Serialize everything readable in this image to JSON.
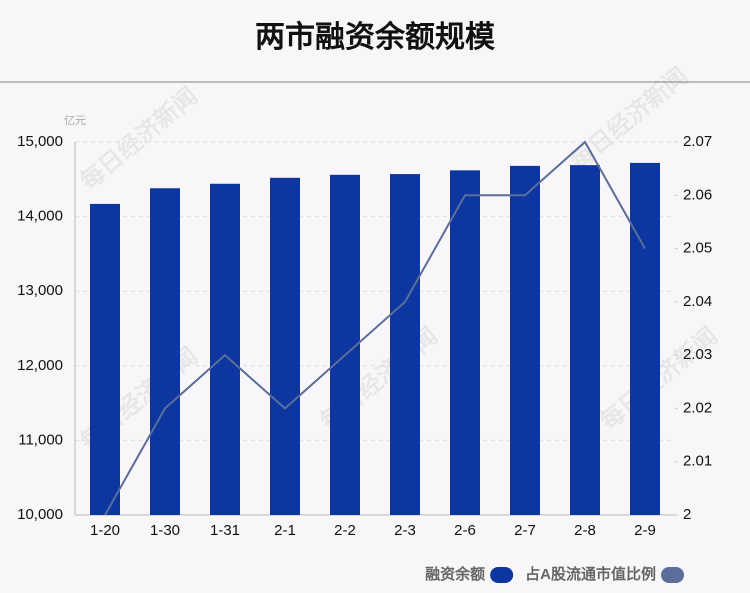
{
  "chart_data": {
    "type": "bar-line",
    "title": "两市融资余额规模",
    "unit_label": "亿元",
    "watermark": "每日经济新闻",
    "categories": [
      "1-20",
      "1-30",
      "1-31",
      "2-1",
      "2-2",
      "2-3",
      "2-6",
      "2-7",
      "2-8",
      "2-9"
    ],
    "series": [
      {
        "name": "融资余额",
        "type": "bar",
        "color": "#0d36a0",
        "axis": "y",
        "values": [
          14170,
          14380,
          14440,
          14520,
          14560,
          14570,
          14620,
          14680,
          14690,
          14720
        ]
      },
      {
        "name": "占A股流通市值比例",
        "type": "line",
        "color": "#5a6e99",
        "axis": "y2",
        "values": [
          2.0,
          2.02,
          2.03,
          2.02,
          2.03,
          2.04,
          2.06,
          2.06,
          2.07,
          2.05
        ]
      }
    ],
    "ylim": [
      10000,
      15000
    ],
    "yticks": [
      {
        "value": 10000,
        "label": "10,000"
      },
      {
        "value": 11000,
        "label": "11,000"
      },
      {
        "value": 12000,
        "label": "12,000"
      },
      {
        "value": 13000,
        "label": "13,000"
      },
      {
        "value": 14000,
        "label": "14,000"
      },
      {
        "value": 15000,
        "label": "15,000"
      }
    ],
    "y2lim": [
      2,
      2.07
    ],
    "y2ticks": [
      2,
      2.01,
      2.02,
      2.03,
      2.04,
      2.05,
      2.06,
      2.07
    ],
    "grid": true,
    "legend": "bottom-right"
  }
}
